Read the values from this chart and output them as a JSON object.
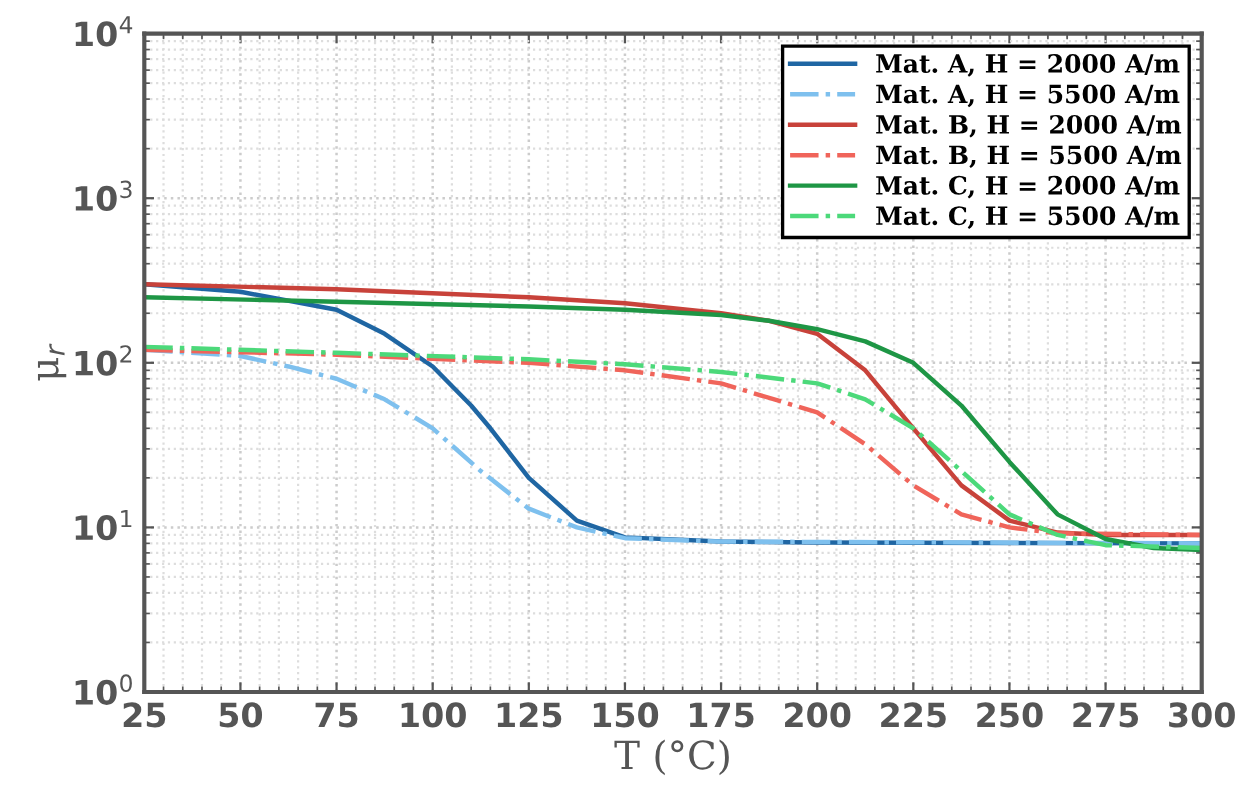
{
  "chart_data": {
    "type": "line",
    "xlabel": "T (°C)",
    "ylabel": "μ$_{r}$",
    "log": "y",
    "xlim": [
      25,
      300
    ],
    "xticks": [
      25,
      50,
      75,
      100,
      125,
      150,
      175,
      200,
      225,
      250,
      275,
      300
    ],
    "ylim": [
      1,
      10000
    ],
    "yticks": [
      {
        "value": 1,
        "label": "10$^{0}$"
      },
      {
        "value": 10,
        "label": "10$^{1}$"
      },
      {
        "value": 100,
        "label": "10$^{2}$"
      },
      {
        "value": 1000,
        "label": "10$^{3}$"
      },
      {
        "value": 10000,
        "label": "10$^{4}$"
      }
    ],
    "grid": true,
    "legend": "top right",
    "marker": "none",
    "series": [
      {
        "name": "Mat. A, H = 2000 A/m",
        "color": "#1f66a3",
        "line_style": "solid",
        "x": [
          25,
          50,
          75,
          87.5,
          100,
          110,
          115,
          125,
          137.5,
          150,
          175,
          200,
          300
        ],
        "values": [
          300,
          270,
          210,
          150,
          95,
          55,
          40,
          20,
          11,
          8.7,
          8.2,
          8.1,
          8.0
        ]
      },
      {
        "name": "Mat. A, H = 5500 A/m",
        "color": "#7ec0ee",
        "line_style": "dashdot",
        "x": [
          25,
          50,
          62.5,
          75,
          87.5,
          100,
          112.5,
          125,
          137.5,
          150,
          175,
          300
        ],
        "values": [
          120,
          110,
          95,
          80,
          60,
          40,
          22,
          13,
          10,
          8.6,
          8.2,
          8.0
        ]
      },
      {
        "name": "Mat. B, H = 2000 A/m",
        "color": "#c8423a",
        "line_style": "solid",
        "x": [
          25,
          75,
          125,
          150,
          175,
          187.5,
          200,
          212.5,
          225,
          237.5,
          250,
          262.5,
          275,
          300
        ],
        "values": [
          300,
          280,
          250,
          230,
          200,
          180,
          150,
          90,
          40,
          18,
          11,
          9.3,
          9,
          9
        ]
      },
      {
        "name": "Mat. B, H = 5500 A/m",
        "color": "#f0645a",
        "line_style": "dashdot",
        "x": [
          25,
          75,
          125,
          150,
          175,
          200,
          212.5,
          225,
          237.5,
          250,
          262.5,
          300
        ],
        "values": [
          120,
          112,
          100,
          90,
          75,
          50,
          32,
          18,
          12,
          10,
          9.2,
          9
        ]
      },
      {
        "name": "Mat. C, H = 2000 A/m",
        "color": "#1e9645",
        "line_style": "solid",
        "x": [
          25,
          75,
          125,
          150,
          175,
          187.5,
          200,
          212.5,
          225,
          237.5,
          250,
          262.5,
          275,
          287.5,
          300
        ],
        "values": [
          250,
          235,
          220,
          210,
          195,
          180,
          160,
          135,
          100,
          55,
          25,
          12,
          8.5,
          7.5,
          7.3
        ]
      },
      {
        "name": "Mat. C, H = 5500 A/m",
        "color": "#4cd97a",
        "line_style": "dashdot",
        "x": [
          25,
          75,
          125,
          150,
          175,
          200,
          212.5,
          225,
          237.5,
          250,
          262.5,
          275,
          300
        ],
        "values": [
          125,
          115,
          105,
          98,
          88,
          75,
          60,
          40,
          22,
          12,
          9,
          7.8,
          7.5
        ]
      }
    ]
  }
}
